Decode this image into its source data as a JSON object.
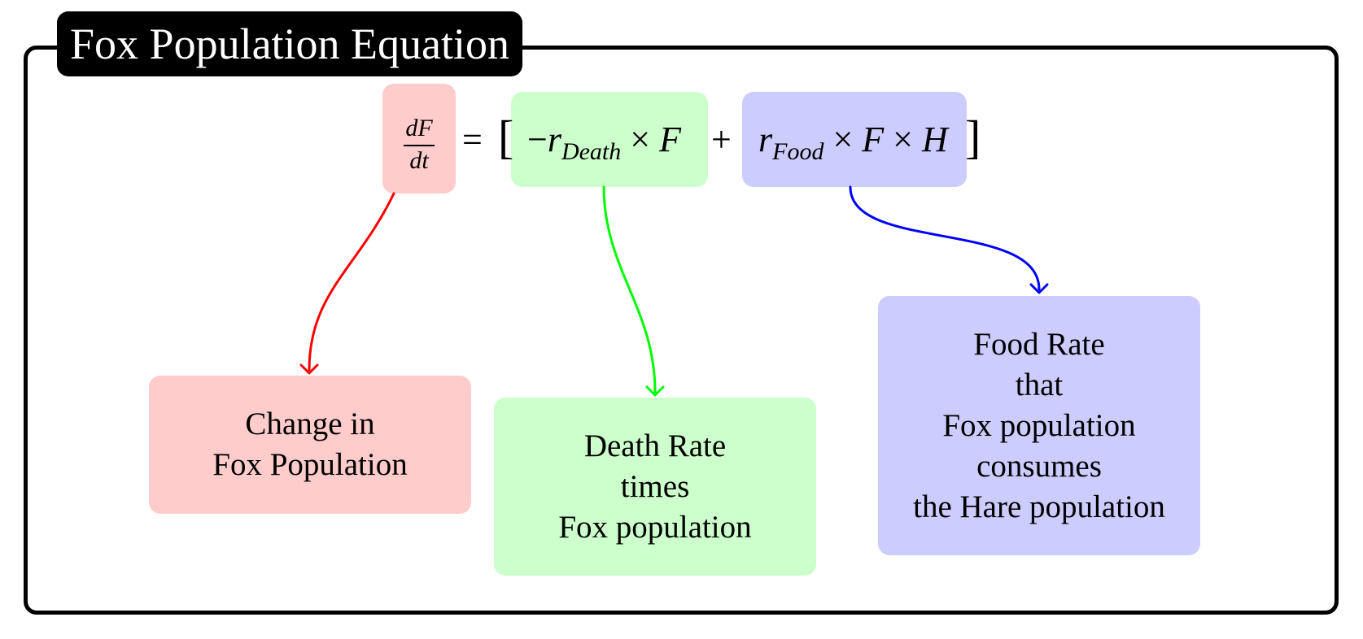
{
  "title": "Fox Population Equation",
  "equation": {
    "lhs": {
      "numerator": "dF",
      "denominator": "dt"
    },
    "equals": "=",
    "open_bracket": "[",
    "close_bracket": "]",
    "plus": "+",
    "death_term": {
      "sign": "−",
      "r": "r",
      "subscript": "Death",
      "times": "×",
      "var": "F"
    },
    "food_term": {
      "r": "r",
      "subscript": "Food",
      "times1": "×",
      "var1": "F",
      "times2": "×",
      "var2": "H"
    }
  },
  "descriptions": {
    "change": [
      "Change in",
      "Fox Population"
    ],
    "death": [
      "Death Rate",
      "times",
      "Fox population"
    ],
    "food": [
      "Food Rate",
      "that",
      "Fox population",
      "consumes",
      "the Hare population"
    ]
  },
  "colors": {
    "red_fill": "#ffcccc",
    "green_fill": "#ccffcc",
    "blue_fill": "#ccccff",
    "red_arrow": "#ff0000",
    "green_arrow": "#00ff00",
    "blue_arrow": "#0000ff"
  }
}
